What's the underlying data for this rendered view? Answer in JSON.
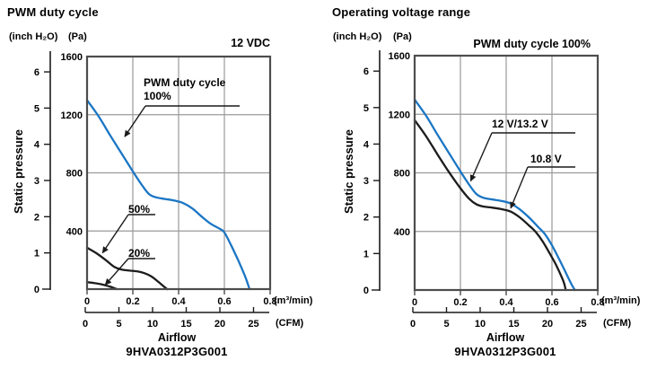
{
  "page": {
    "background": "#ffffff",
    "grid_color": "#9a9a9a",
    "border_color": "#4d4d4d",
    "axis_color": "#1a1a1a",
    "accent_blue": "#1b76c4",
    "curve_black": "#1c1c1c"
  },
  "chart_data": [
    {
      "type": "line",
      "title": "PWM duty cycle",
      "condition_label": "12 VDC",
      "model": "9HVA0312P3G001",
      "y_axis": {
        "label": "Static pressure",
        "unit_primary": "(Pa)",
        "unit_secondary": "(inch H₂O)",
        "pa_ticks": [
          0,
          400,
          800,
          1200,
          1600
        ],
        "inch_ticks": [
          0,
          1,
          2,
          3,
          4,
          5,
          6
        ],
        "pa_range": [
          0,
          1600
        ],
        "pa_per_inch_h2o": 249.1
      },
      "x_axis": {
        "label": "Airflow",
        "unit_primary": "(m³/min)",
        "unit_secondary": "(CFM)",
        "m3min_ticks": [
          0,
          0.2,
          0.4,
          0.6,
          0.8
        ],
        "cfm_ticks": [
          0,
          5,
          10,
          15,
          20,
          25
        ],
        "m3min_range": [
          0,
          0.8
        ]
      },
      "grid": true,
      "legend_position": "inline-annotations",
      "series": [
        {
          "name": "PWM duty cycle 100%",
          "color": "#1b76c4",
          "points_m3min_pa": [
            [
              0,
              1300
            ],
            [
              0.05,
              1190
            ],
            [
              0.1,
              1060
            ],
            [
              0.15,
              935
            ],
            [
              0.2,
              810
            ],
            [
              0.24,
              715
            ],
            [
              0.27,
              655
            ],
            [
              0.3,
              632
            ],
            [
              0.34,
              620
            ],
            [
              0.38,
              610
            ],
            [
              0.42,
              592
            ],
            [
              0.46,
              555
            ],
            [
              0.5,
              500
            ],
            [
              0.54,
              450
            ],
            [
              0.58,
              415
            ],
            [
              0.6,
              390
            ],
            [
              0.63,
              300
            ],
            [
              0.66,
              200
            ],
            [
              0.69,
              90
            ],
            [
              0.71,
              0
            ]
          ]
        },
        {
          "name": "50%",
          "color": "#1c1c1c",
          "points_m3min_pa": [
            [
              0,
              285
            ],
            [
              0.04,
              248
            ],
            [
              0.08,
              202
            ],
            [
              0.12,
              152
            ],
            [
              0.15,
              135
            ],
            [
              0.18,
              128
            ],
            [
              0.22,
              122
            ],
            [
              0.25,
              110
            ],
            [
              0.28,
              88
            ],
            [
              0.31,
              52
            ],
            [
              0.34,
              12
            ],
            [
              0.35,
              0
            ]
          ]
        },
        {
          "name": "20%",
          "color": "#1c1c1c",
          "points_m3min_pa": [
            [
              0,
              48
            ],
            [
              0.03,
              42
            ],
            [
              0.06,
              34
            ],
            [
              0.09,
              22
            ],
            [
              0.11,
              12
            ],
            [
              0.13,
              0
            ]
          ]
        }
      ],
      "annotations": [
        {
          "label": "PWM duty cycle\n100%",
          "target_m3min_pa": [
            0.165,
            1050
          ]
        },
        {
          "label": "50%",
          "target_m3min_pa": [
            0.068,
            250
          ]
        },
        {
          "label": "20%",
          "target_m3min_pa": [
            0.08,
            30
          ]
        }
      ]
    },
    {
      "type": "line",
      "title": "Operating voltage range",
      "condition_label": "PWM duty cycle 100%",
      "model": "9HVA0312P3G001",
      "y_axis": {
        "label": "Static pressure",
        "unit_primary": "(Pa)",
        "unit_secondary": "(inch H₂O)",
        "pa_ticks": [
          0,
          400,
          800,
          1200,
          1600
        ],
        "inch_ticks": [
          0,
          1,
          2,
          3,
          4,
          5,
          6
        ],
        "pa_range": [
          0,
          1600
        ],
        "pa_per_inch_h2o": 249.1
      },
      "x_axis": {
        "label": "Airflow",
        "unit_primary": "(m³/min)",
        "unit_secondary": "(CFM)",
        "m3min_ticks": [
          0,
          0.2,
          0.4,
          0.6,
          0.8
        ],
        "cfm_ticks": [
          0,
          5,
          10,
          15,
          20,
          25
        ],
        "m3min_range": [
          0,
          0.8
        ]
      },
      "grid": true,
      "legend_position": "inline-annotations",
      "series": [
        {
          "name": "12 V/13.2 V",
          "color": "#1b76c4",
          "points_m3min_pa": [
            [
              0,
              1300
            ],
            [
              0.05,
              1190
            ],
            [
              0.1,
              1060
            ],
            [
              0.15,
              935
            ],
            [
              0.2,
              810
            ],
            [
              0.24,
              715
            ],
            [
              0.27,
              655
            ],
            [
              0.3,
              630
            ],
            [
              0.34,
              618
            ],
            [
              0.38,
              608
            ],
            [
              0.42,
              590
            ],
            [
              0.46,
              550
            ],
            [
              0.5,
              495
            ],
            [
              0.54,
              430
            ],
            [
              0.57,
              380
            ],
            [
              0.6,
              305
            ],
            [
              0.63,
              215
            ],
            [
              0.66,
              120
            ],
            [
              0.685,
              40
            ],
            [
              0.7,
              0
            ]
          ]
        },
        {
          "name": "10.8 V",
          "color": "#1c1c1c",
          "points_m3min_pa": [
            [
              0,
              1160
            ],
            [
              0.05,
              1050
            ],
            [
              0.1,
              925
            ],
            [
              0.15,
              805
            ],
            [
              0.2,
              695
            ],
            [
              0.24,
              620
            ],
            [
              0.27,
              585
            ],
            [
              0.3,
              570
            ],
            [
              0.34,
              562
            ],
            [
              0.38,
              552
            ],
            [
              0.42,
              535
            ],
            [
              0.46,
              495
            ],
            [
              0.5,
              440
            ],
            [
              0.53,
              395
            ],
            [
              0.56,
              330
            ],
            [
              0.59,
              250
            ],
            [
              0.62,
              165
            ],
            [
              0.65,
              60
            ],
            [
              0.66,
              0
            ]
          ]
        }
      ],
      "annotations": [
        {
          "label": "12 V/13.2 V",
          "target_m3min_pa": [
            0.245,
            745
          ]
        },
        {
          "label": "10.8 V",
          "target_m3min_pa": [
            0.42,
            560
          ]
        }
      ]
    }
  ]
}
